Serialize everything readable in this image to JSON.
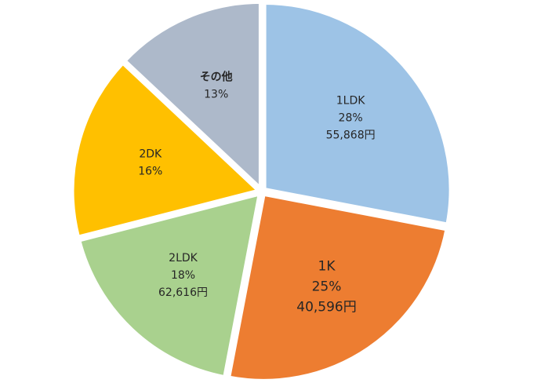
{
  "chart_data": {
    "type": "pie",
    "categories": [
      "1LDK",
      "1K",
      "2LDK",
      "2DK",
      "その他"
    ],
    "values": [
      28,
      25,
      18,
      16,
      13
    ],
    "value_labels": [
      "28%",
      "25%",
      "18%",
      "16%",
      "13%"
    ],
    "amount_labels": [
      "55,868円",
      "40,596円",
      "62,616円",
      null,
      null
    ],
    "colors": [
      "#9dc3e6",
      "#ed7d31",
      "#a9d18e",
      "#ffc000",
      "#adb9ca"
    ]
  }
}
